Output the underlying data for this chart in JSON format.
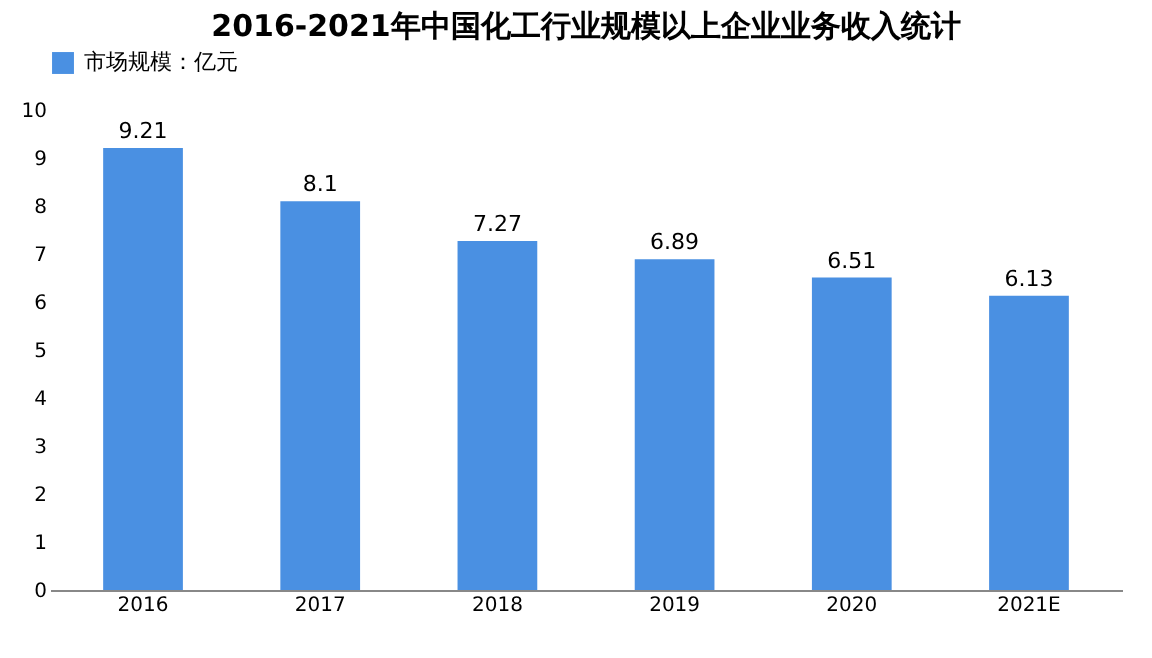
{
  "chart_data": {
    "type": "bar",
    "title": "2016-2021年中国化工行业规模以上企业业务收入统计",
    "categories": [
      "2016",
      "2017",
      "2018",
      "2019",
      "2020",
      "2021E"
    ],
    "series": [
      {
        "name": "市场规模：亿元",
        "color": "#4a90e2",
        "values": [
          9.21,
          8.1,
          7.27,
          6.89,
          6.51,
          6.13
        ]
      }
    ],
    "ylim": [
      0,
      10
    ],
    "yticks": [
      0,
      1,
      2,
      3,
      4,
      5,
      6,
      7,
      8,
      9,
      10
    ],
    "grid": false,
    "legend": "top",
    "data_labels": true
  }
}
